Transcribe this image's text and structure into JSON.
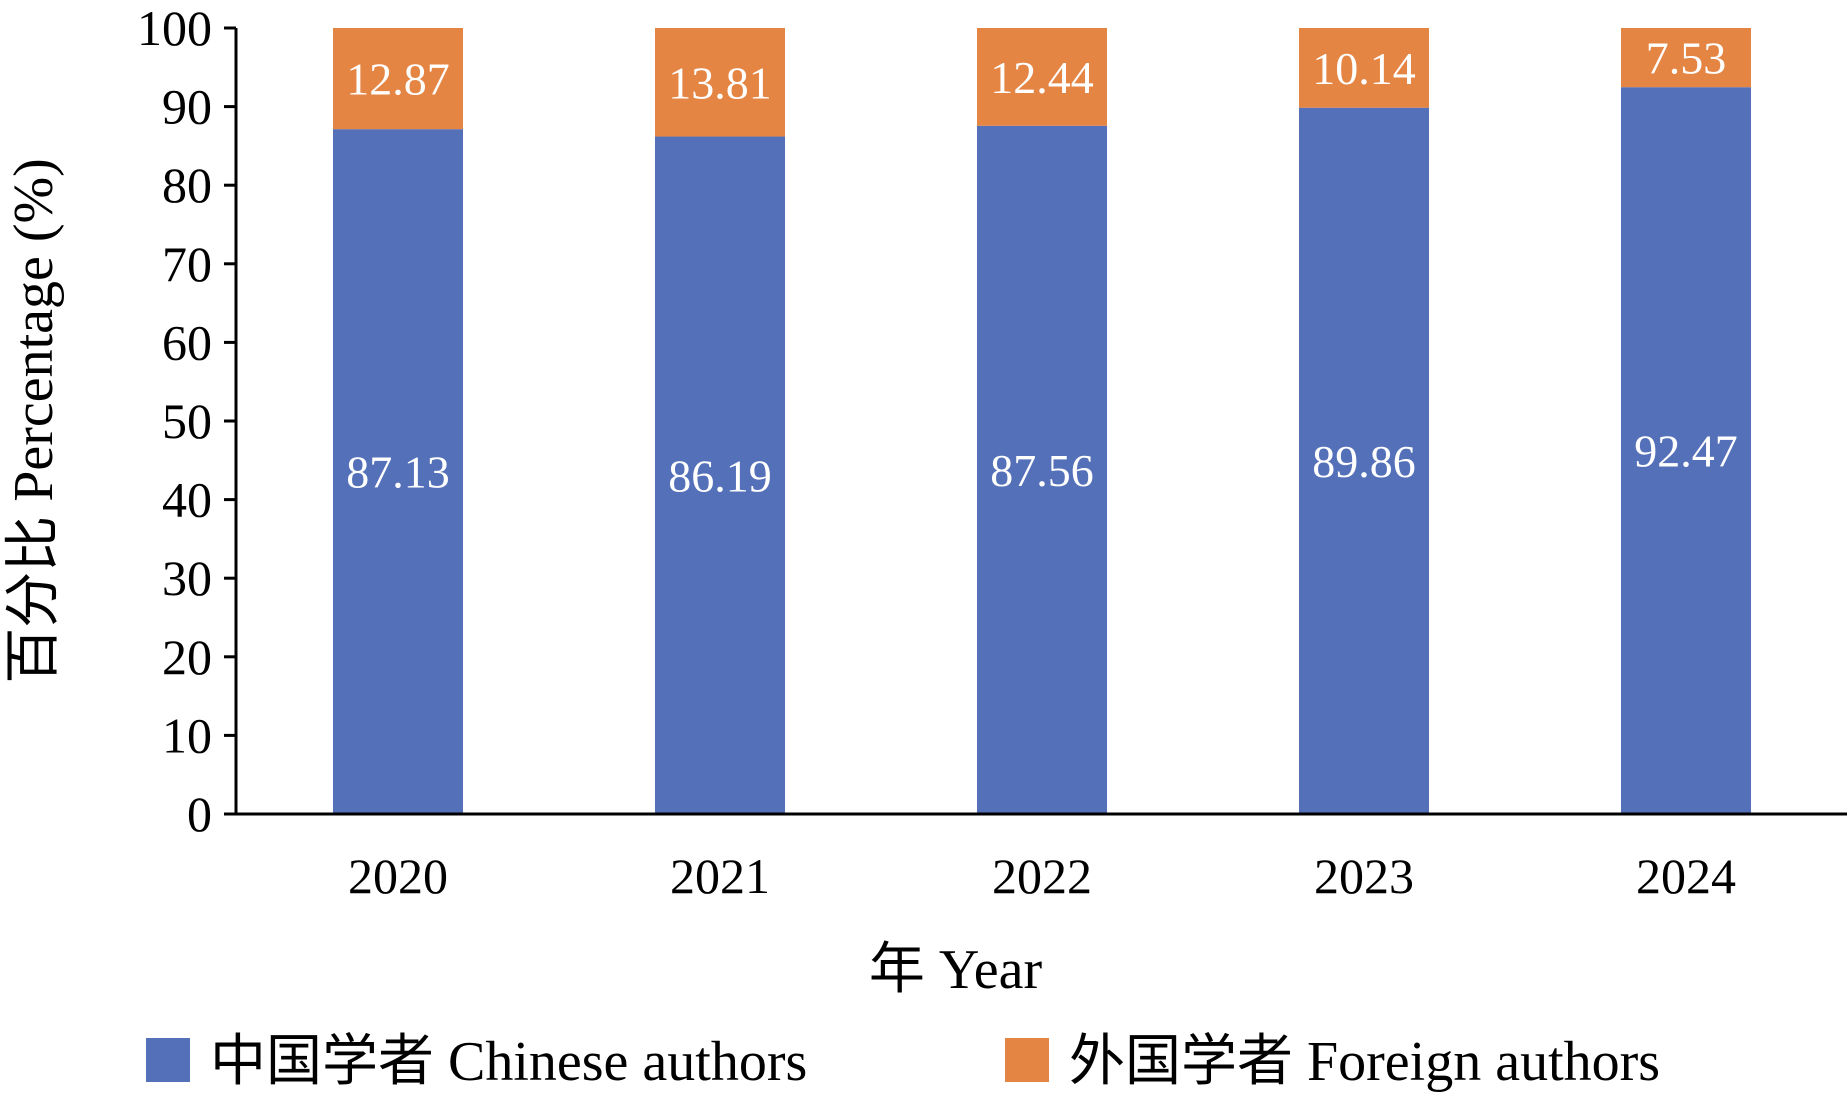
{
  "chart_data": {
    "type": "bar",
    "stacked": true,
    "categories": [
      "2020",
      "2021",
      "2022",
      "2023",
      "2024"
    ],
    "series": [
      {
        "name": "中国学者 Chinese authors",
        "values": [
          87.13,
          86.19,
          87.56,
          89.86,
          92.47
        ],
        "labels": [
          "87.13",
          "86.19",
          "87.56",
          "89.86",
          "92.47"
        ],
        "color": "#5470b8"
      },
      {
        "name": "外国学者 Foreign authors",
        "values": [
          12.87,
          13.81,
          12.44,
          10.14,
          7.53
        ],
        "labels": [
          "12.87",
          "13.81",
          "12.44",
          "10.14",
          "7.53"
        ],
        "color": "#e58544"
      }
    ],
    "title": "",
    "xlabel": "年 Year",
    "ylabel": "百分比 Percentage (%)",
    "ylim": [
      0,
      100
    ],
    "yticks": [
      "0",
      "10",
      "20",
      "30",
      "40",
      "50",
      "60",
      "70",
      "80",
      "90",
      "100"
    ],
    "grid": false,
    "legend_position": "bottom"
  }
}
